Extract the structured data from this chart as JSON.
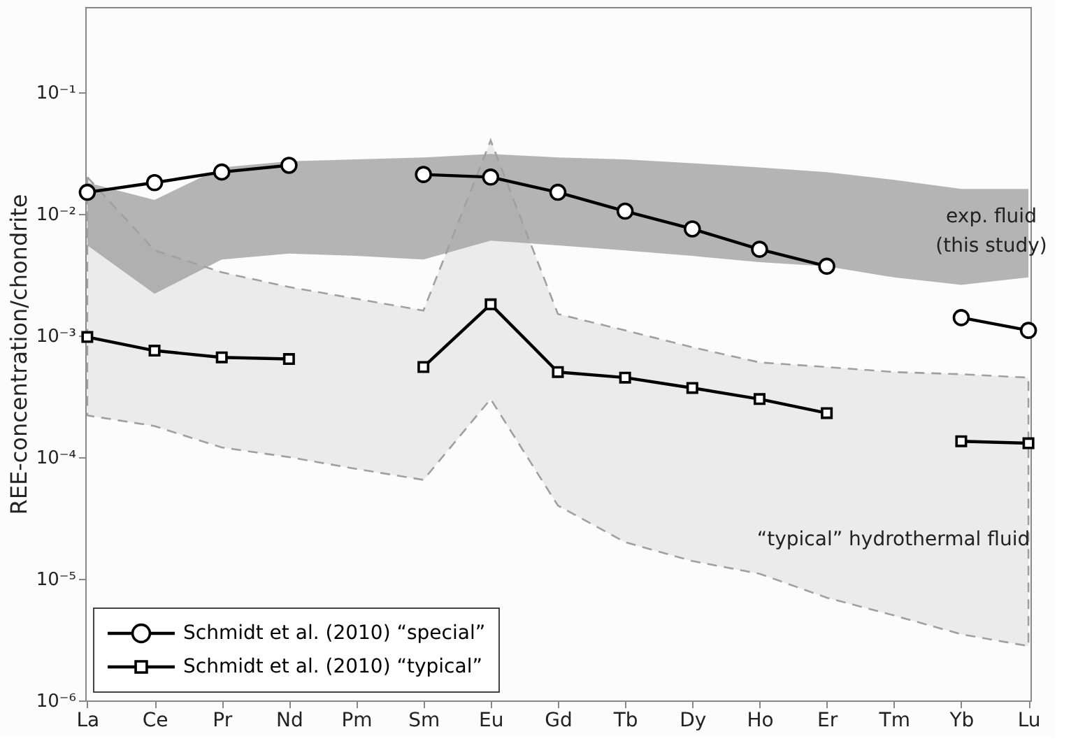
{
  "chart_data": {
    "type": "line",
    "ylabel": "REE-concentration/chondrite",
    "categories": [
      "La",
      "Ce",
      "Pr",
      "Nd",
      "Pm",
      "Sm",
      "Eu",
      "Gd",
      "Tb",
      "Dy",
      "Ho",
      "Er",
      "Tm",
      "Yb",
      "Lu"
    ],
    "log": true,
    "ylim": [
      1e-06,
      0.5
    ],
    "yticks": [
      {
        "value": 1e-06,
        "label": "10⁻⁶"
      },
      {
        "value": 1e-05,
        "label": "10⁻⁵"
      },
      {
        "value": 0.0001,
        "label": "10⁻⁴"
      },
      {
        "value": 0.001,
        "label": "10⁻³"
      },
      {
        "value": 0.01,
        "label": "10⁻²"
      },
      {
        "value": 0.1,
        "label": "10⁻¹"
      }
    ],
    "grid": false,
    "legend": "bottom left",
    "line_style": "solid",
    "series": [
      {
        "type": "area",
        "color": "#b4b4b4",
        "values": [
          null,
          null,
          null,
          null,
          null,
          null,
          null,
          null,
          null,
          null,
          null,
          null,
          null,
          null,
          null
        ],
        "upper": [
          0.018,
          0.013,
          0.024,
          0.027,
          0.028,
          0.029,
          0.031,
          0.029,
          0.028,
          0.026,
          0.024,
          0.022,
          0.019,
          0.016,
          0.016
        ],
        "lower": [
          0.0055,
          0.0022,
          0.0042,
          0.0047,
          0.0045,
          0.0042,
          0.006,
          0.0055,
          0.005,
          0.0045,
          0.004,
          0.0037,
          0.003,
          0.0026,
          0.003
        ]
      },
      {
        "type": "area",
        "color": "#a0a0a0",
        "line_style": "dashed",
        "values": [
          null,
          null,
          null,
          null,
          null,
          null,
          null,
          null,
          null,
          null,
          null,
          null,
          null,
          null,
          null
        ],
        "upper": [
          0.02,
          0.005,
          0.0033,
          0.0025,
          0.002,
          0.0016,
          0.04,
          0.0015,
          0.0011,
          0.0008,
          0.0006,
          0.00055,
          0.0005,
          0.00048,
          0.00045
        ],
        "lower": [
          0.00022,
          0.00018,
          0.00012,
          0.0001,
          8e-05,
          6.5e-05,
          0.0003,
          4e-05,
          2e-05,
          1.4e-05,
          1.1e-05,
          7e-06,
          5e-06,
          3.5e-06,
          2.8e-06
        ]
      },
      {
        "name": "Schmidt et al.  (2010) “special”",
        "color": "#000000",
        "marker": "circle",
        "values": [
          0.015,
          0.018,
          0.022,
          0.025,
          null,
          0.021,
          0.02,
          0.015,
          0.0105,
          0.0075,
          0.0051,
          0.0037,
          null,
          0.0014,
          0.0011
        ]
      },
      {
        "name": "Schmidt et al.  (2010) “typical”",
        "color": "#000000",
        "marker": "square",
        "values": [
          0.00097,
          0.00075,
          0.00066,
          0.00064,
          null,
          0.00055,
          0.0018,
          0.0005,
          0.00045,
          0.00037,
          0.0003,
          0.00023,
          null,
          0.000135,
          0.00013
        ]
      }
    ],
    "annotations": [
      "exp. fluid",
      "(this study)",
      "“typical” hydrothermal fluid"
    ]
  }
}
